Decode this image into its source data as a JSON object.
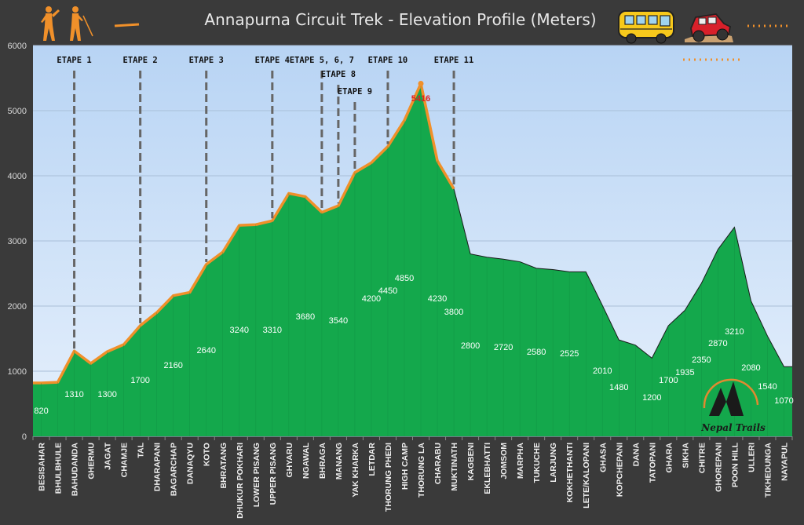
{
  "chart_data": {
    "type": "area",
    "title": "Annapurna Circuit Trek - Elevation Profile (Meters)",
    "ylim": [
      0,
      6000
    ],
    "yticks": [
      0,
      1000,
      2000,
      3000,
      4000,
      5000,
      6000
    ],
    "grid": true,
    "categories": [
      "BESISAHAR",
      "BHULBHULE",
      "BAHUDANDA",
      "GHERMU",
      "JAGAT",
      "CHAMJE",
      "TAL",
      "DHARAPANI",
      "BAGARCHAP",
      "DANAQYU",
      "KOTO",
      "BHRATANG",
      "DHUKUR POKHARI",
      "LOWER PISANG",
      "UPPER PISANG",
      "GHYARU",
      "NGAWAL",
      "BHRAGA",
      "MANANG",
      "YAK KHARKA",
      "LETDAR",
      "THORUNG PHEDI",
      "HIGH CAMP",
      "THORUNG LA",
      "CHARABU",
      "MUKTINATH",
      "KAGBENI",
      "EKLEBHATTI",
      "JOMSOM",
      "MARPHA",
      "TUKUCHE",
      "LARJUNG",
      "KOKHETHANTI",
      "LETE/KALOPANI",
      "GHASA",
      "KOPCHEPANI",
      "DANA",
      "TATOPANI",
      "GHARA",
      "SIKHA",
      "CHITRE",
      "GHOREPANI",
      "POON HILL",
      "ULLERI",
      "TIKHEDUNGA",
      "NAYAPUL"
    ],
    "values": [
      820,
      830,
      1310,
      1120,
      1300,
      1410,
      1700,
      1900,
      2160,
      2210,
      2640,
      2830,
      3240,
      3250,
      3310,
      3730,
      3680,
      3440,
      3540,
      4050,
      4200,
      4450,
      4850,
      5416,
      4230,
      3800,
      2800,
      2750,
      2720,
      2680,
      2580,
      2560,
      2525,
      2525,
      2010,
      1480,
      1400,
      1200,
      1700,
      1935,
      2350,
      2870,
      3210,
      2080,
      1540,
      1070
    ],
    "data_labels": [
      {
        "index": 0,
        "text": "820"
      },
      {
        "index": 2,
        "text": "1310"
      },
      {
        "index": 4,
        "text": "1300"
      },
      {
        "index": 6,
        "text": "1700"
      },
      {
        "index": 8,
        "text": "2160"
      },
      {
        "index": 10,
        "text": "2640"
      },
      {
        "index": 12,
        "text": "3240"
      },
      {
        "index": 14,
        "text": "3310"
      },
      {
        "index": 16,
        "text": "3680"
      },
      {
        "index": 18,
        "text": "3540"
      },
      {
        "index": 20,
        "text": "4200"
      },
      {
        "index": 21,
        "text": "4450"
      },
      {
        "index": 22,
        "text": "4850"
      },
      {
        "index": 24,
        "text": "4230"
      },
      {
        "index": 25,
        "text": "3800"
      },
      {
        "index": 26,
        "text": "2800"
      },
      {
        "index": 28,
        "text": "2720"
      },
      {
        "index": 30,
        "text": "2580"
      },
      {
        "index": 32,
        "text": "2525"
      },
      {
        "index": 34,
        "text": "2010"
      },
      {
        "index": 35,
        "text": "1480"
      },
      {
        "index": 37,
        "text": "1200"
      },
      {
        "index": 38,
        "text": "1700"
      },
      {
        "index": 39,
        "text": "1935"
      },
      {
        "index": 40,
        "text": "2350"
      },
      {
        "index": 41,
        "text": "2870"
      },
      {
        "index": 42,
        "text": "3210"
      },
      {
        "index": 43,
        "text": "2080"
      },
      {
        "index": 44,
        "text": "1540"
      },
      {
        "index": 45,
        "text": "1070"
      }
    ],
    "peak_label": {
      "index": 23,
      "text": "5416"
    },
    "trek_range": {
      "from": 0,
      "to": 25
    },
    "stages": [
      {
        "label": "ETAPE 1",
        "index": 2
      },
      {
        "label": "ETAPE 2",
        "index": 6
      },
      {
        "label": "ETAPE 3",
        "index": 10
      },
      {
        "label": "ETAPE 4",
        "index": 14
      },
      {
        "label": "ETAPE 5, 6, 7",
        "index": 17
      },
      {
        "label": "ETAPE 8",
        "index": 18
      },
      {
        "label": "ETAPE 9",
        "index": 19
      },
      {
        "label": "ETAPE 10",
        "index": 21
      },
      {
        "label": "ETAPE 11",
        "index": 25
      }
    ],
    "colors": {
      "area": "#14a84c",
      "trek_line": "#f0902a",
      "outline": "#1a1a1a",
      "stage_line": "#666666",
      "plot_bg_top": "#b8d4f4",
      "plot_bg_bottom": "#e6f0fc",
      "background": "#3a3a3a"
    }
  },
  "logo": {
    "text": "Nepal Trails"
  },
  "icons": [
    "hiker-icon",
    "hiker-with-stick-icon",
    "bus-icon",
    "jeep-icon"
  ]
}
